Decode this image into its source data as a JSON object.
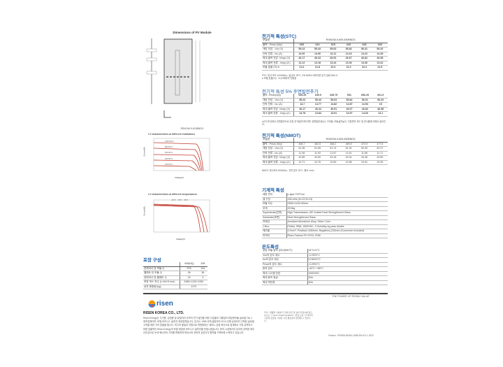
{
  "dimensions": {
    "title": "Dimensions of PV Module",
    "model": "RSM156-9-615BNDG"
  },
  "iv_irr": {
    "title": "I-V characteristics at different irradiations",
    "ylabel": "Current(A)",
    "xlabel": "Voltage(V)",
    "legend": [
      "1000 W/m²",
      "800 W/m²",
      "600 W/m²",
      "400 W/m²",
      "200 W/m²"
    ]
  },
  "iv_temp": {
    "title": "I-V characteristics at different temperatures",
    "ylabel": "Current(A)",
    "xlabel": "Voltage(V)",
    "legend": [
      "-10°C",
      "25°C",
      "60°C"
    ]
  },
  "stc": {
    "title": "전기적 특성(STC)",
    "model_label": "모델명",
    "model": "RSM156-9-605-630BNDG",
    "rows": [
      {
        "label": "출력 - Pmax (Wp)",
        "values": [
          "605",
          "610",
          "615",
          "620",
          "625",
          "630"
        ]
      },
      {
        "label": "개방 전압 - Voc (V)",
        "values": [
          "55.23",
          "55.43",
          "55.63",
          "55.82",
          "56.01",
          "56.20"
        ]
      },
      {
        "label": "단락 전류 - Isc (A)",
        "values": [
          "14.00",
          "14.06",
          "14.11",
          "14.16",
          "14.22",
          "14.28"
        ]
      },
      {
        "label": "최대 출력 전압 -Vmpp (V)",
        "values": [
          "46.17",
          "46.34",
          "46.51",
          "46.67",
          "46.82",
          "46.98"
        ]
      },
      {
        "label": "최대 출력 전류 - Impp (A )",
        "values": [
          "13.12",
          "13.18",
          "13.24",
          "13.30",
          "13.36",
          "13.42"
        ]
      },
      {
        "label": "모듈 효율 (%) ●",
        "values": [
          "21.6",
          "21.8",
          "22.0",
          "22.2",
          "22.4",
          "22.5"
        ]
      }
    ],
    "note1": "STC: 방사 조도 1000W/m², 셀 온도 25°C, EN 60904-3에 따른 공기 질량 AM1.5.",
    "note2": "● 모듈 효율(%) : 소수2째자리 반올림"
  },
  "bifacial": {
    "title": "전기적 특성 5% 후면발전추가",
    "rows": [
      {
        "label": "출력 -Pmax(Wp)",
        "values": [
          "635.25",
          "640.5",
          "645.75",
          "651",
          "656.25",
          "661.5"
        ]
      },
      {
        "label": "개방 전압 - Voc (V)",
        "values": [
          "55.23",
          "55.43",
          "55.63",
          "55.82",
          "56.01",
          "56.20"
        ]
      },
      {
        "label": "단락 전류 - Isc (A)",
        "values": [
          "14.7",
          "14.77",
          "14.82",
          "14.87",
          "14.94",
          "15"
        ]
      },
      {
        "label": "최대 출력 전압 -Vmpp (V)",
        "values": [
          "46.17",
          "46.34",
          "46.51",
          "46.67",
          "46.82",
          "46.98"
        ]
      },
      {
        "label": "최대 출력 전류 - Impp (A )",
        "values": [
          "13.78",
          "13.84",
          "13.91",
          "13.97",
          "14.03",
          "14.1"
        ]
      }
    ],
    "note": "●STC조건에서 전면발전으로 인한 추가발전이득이며, 양면발전계수는 구조물, 모듈설치높이, 지표면의 지도 및 반사율에 의해서 달라진다."
  },
  "nmot": {
    "title": "전기적 특성(NMOT)",
    "model_label": "모델명",
    "model": "RSM156-9-605-630BNDG",
    "rows": [
      {
        "label": "출력 - Pmax (Wp)",
        "values": [
          "458.7",
          "462.5",
          "466.2",
          "469.9",
          "473.9",
          "477.6"
        ]
      },
      {
        "label": "개방 전압 - Voc (V)",
        "values": [
          "51.36",
          "51.55",
          "51.74",
          "51.91",
          "52.09",
          "52.27"
        ]
      },
      {
        "label": "단락 전류 - Isc (A)",
        "values": [
          "11.48",
          "11.53",
          "11.57",
          "11.61",
          "11.66",
          "11.71"
        ]
      },
      {
        "label": "최대 출력 전압 -Vmpp (V)",
        "values": [
          "42.85",
          "43.00",
          "43.16",
          "43.31",
          "43.45",
          "43.60"
        ]
      },
      {
        "label": "최대 출력 전류 - Impp (A )",
        "values": [
          "10.71",
          "10.76",
          "10.80",
          "10.85",
          "10.91",
          "10.95"
        ]
      }
    ],
    "note": "NMOT: 방사조도 800W/m², 주변 온도 20°C, 풍속 1m/s."
  },
  "mech": {
    "title": "기계적 특성",
    "rows": [
      {
        "label": "태양 전지",
        "value": "p-type TOPCon"
      },
      {
        "label": "셀 구성",
        "value": "156 cells (6×13+6×13)"
      },
      {
        "label": "모듈 치수",
        "value": "2465×1134×30mm"
      },
      {
        "label": "무게",
        "value": "33.5kg"
      },
      {
        "label": "Superstrate(전면)",
        "value": "High Transmission, AR Coated Heat Strengthened Glass"
      },
      {
        "label": "Substrate(후면)",
        "value": "Heat Strengthened Glass"
      },
      {
        "label": "프레임",
        "value": "Anodized Aluminium Alloy, Silver Color"
      },
      {
        "label": "J-Box",
        "value": "Potted, IP68, 1500VDC, 3 Schottky by pass diodes"
      },
      {
        "label": "케이블",
        "value": "4.0mm², Positive(+)350mm, Negative(-)230mm (Connector Included)"
      },
      {
        "label": "커넥터",
        "value": "Risen Twinsel PV-SY02, IP68"
      }
    ]
  },
  "temp": {
    "title": "온도특성",
    "rows": [
      {
        "label": "공칭 모듈 동작 온도(NMOT)",
        "value": "44°C±2°C"
      },
      {
        "label": "Voc의 온도 계수",
        "value": "-0.25%/°C"
      },
      {
        "label": "Isc의 온도 계수",
        "value": "0.046%/°C"
      },
      {
        "label": "Pmax의 온도 계수",
        "value": "-0.29%/°C"
      },
      {
        "label": "동작 온도",
        "value": "-40°C~+85°C"
      },
      {
        "label": "최대 시스템 전압",
        "value": "1500VDC"
      },
      {
        "label": "최대 퓨즈 등급",
        "value": "30A"
      },
      {
        "label": "최대 역전류",
        "value": "30A"
      }
    ]
  },
  "pack": {
    "title": "포장 구성",
    "cols": [
      "40ft(HQ)",
      "20ft"
    ],
    "rows": [
      {
        "label": "컨테이너 당 모듈 수",
        "values": [
          "576",
          "144"
        ]
      },
      {
        "label": "팰레트 당 모듈 수",
        "values": [
          "36",
          "36"
        ]
      },
      {
        "label": "컨테이너 당 팰레트 수",
        "values": [
          "16",
          "4"
        ]
      }
    ],
    "box_label": "포장 박스 치수 (L×W×H mm)",
    "box_value": "2485×1120×1260",
    "weight_label": "상자 총중량 [kg]",
    "weight_value": "1170"
  },
  "footer": {
    "logo": "risen",
    "tagline": "THE POWER OF RISING VALUE",
    "company": "RISEN KOREA CO., LTD.",
    "about": "Risen Energy는 주거용, 상업용 및 유틸리티 규모의 전기 발전을 위한 고효율과 고품질의 태양광모듈 글로벌 Tier 1 제조업체이며, 토털 비즈니스 솔루션 제공업체입니다. 본사는 1986 년에 설립되어 2010 년에 상장되어 선택된 글로벌 고객을 위한 가치 창출을 합니다. 최고의 품질과 지원으로 탁월함되는 제조노-상업 혁신으로 업계에서 가장 강력하고 비용 효율적인 Risen Energy의 토털 태양광 비즈니스 솔루션을 탄생시켰습니다. 현지 시장에서의 입지와 강력한 재무 안전성으로 녹색 에너지의 가치를 활용하여 파트너와 전략적 상호이익 협력을 구축토록 노력하고 있습니다.",
    "notice": "주의 : 제품을 사용하기 전에 안전 및 설치 지침서를 읽으십시오. © 2022 RISEN ENERGY. 판권 소유. 이 데이터 시트에 포함된 사양은 사전 통보없이 변경될 수 있습니다.",
    "version": "Version : RENSA-BNDG-1688-EN-KO-1-2022"
  },
  "colors": {
    "heading": "#1f5fa8",
    "logo": "#1f5fa8"
  }
}
